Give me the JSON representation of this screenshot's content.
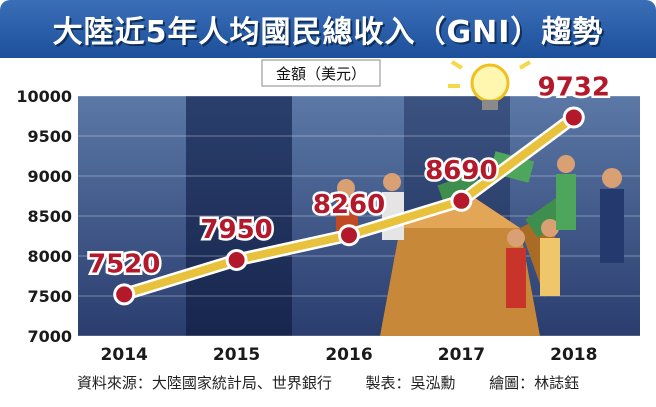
{
  "title": "大陸近5年人均國民總收入（GNI）趨勢",
  "footer": {
    "source": "資料來源：大陸國家統計局、世界銀行",
    "maker": "製表：吳泓勳",
    "artist": "繪圖：林誌鈺"
  },
  "colors": {
    "title_bg": "#2a5ea8",
    "plot_bg_light": "#4c6b99",
    "plot_bg_dark": "#1f2f5c",
    "line": "#e8c23c",
    "marker": "#b3192a",
    "label": "#b3192a"
  },
  "illustration": {
    "icons": [
      "lightbulb-icon",
      "money-box-icon",
      "cheering-people-icon"
    ]
  },
  "chart_data": {
    "type": "line",
    "unit_label": "金額（美元）",
    "x": [
      "2014",
      "2015",
      "2016",
      "2017",
      "2018"
    ],
    "series": [
      {
        "values": [
          7520,
          7950,
          8260,
          8690,
          9732
        ]
      }
    ],
    "data_labels": [
      "7520",
      "7950",
      "8260",
      "8690",
      "9732"
    ],
    "ylim": [
      7000,
      10000
    ],
    "yticks": [
      7000,
      7500,
      8000,
      8500,
      9000,
      9500,
      10000
    ],
    "ytick_labels": [
      "7000",
      "7500",
      "8000",
      "8500",
      "9000",
      "9500",
      "10000"
    ],
    "grid": true,
    "legend": "none"
  }
}
